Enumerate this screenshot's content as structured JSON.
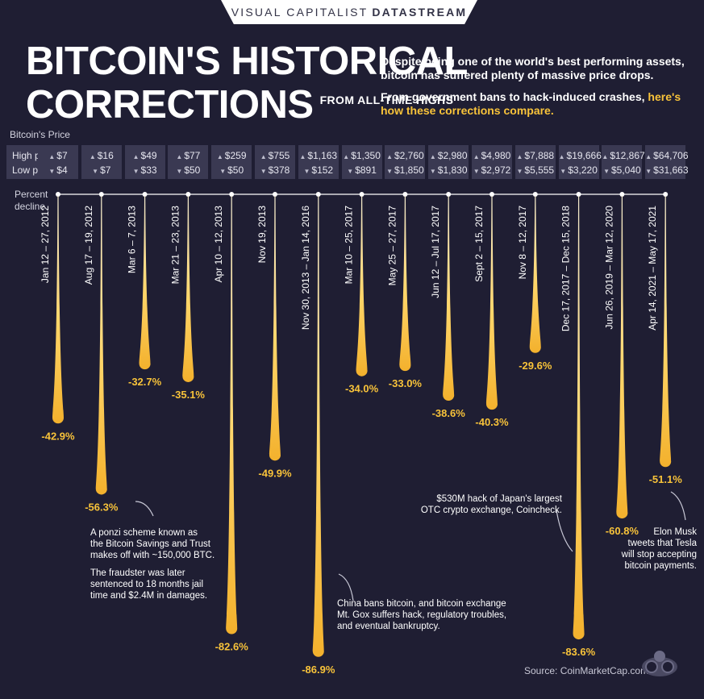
{
  "header": {
    "brand_light": "VISUAL CAPITALIST",
    "brand_bold": "DATASTREAM"
  },
  "title": {
    "line1": "BITCOIN'S HISTORICAL",
    "line2": "CORRECTIONS",
    "subtitle": "FROM ALL-TIME HIGHS"
  },
  "intro": {
    "p1": "Despite being one of the world's best performing assets, bitcoin has suffered plenty of massive price drops.",
    "p2_white": "From government bans to hack-induced crashes,",
    "p2_highlight": "here's how these corrections compare."
  },
  "labels": {
    "price_heading": "Bitcoin's Price",
    "high_price": "High price",
    "low_price": "Low price",
    "percent": "Percent",
    "decline": "decline"
  },
  "source": "Source: CoinMarketCap.com",
  "colors": {
    "accent": "#f8c33a",
    "background": "#1f1e33",
    "panel": "#3a3952"
  },
  "chart_data": {
    "type": "bar",
    "title": "Bitcoin's Historical Corrections from All-Time Highs",
    "ylabel": "Percent decline",
    "ylim": [
      0,
      -90
    ],
    "categories": [
      "Jan 12 – 27, 2012",
      "Aug 17 – 19, 2012",
      "Mar 6 – 7, 2013",
      "Mar 21 – 23, 2013",
      "Apr 10 – 12, 2013",
      "Nov 19, 2013",
      "Nov 30, 2013 – Jan 14, 2016",
      "Mar 10 – 25, 2017",
      "May 25 – 27, 2017",
      "Jun 12 – Jul 17, 2017",
      "Sept 2 – 15, 2017",
      "Nov 8 – 12, 2017",
      "Dec 17, 2017 – Dec 15, 2018",
      "Jun 26, 2019 – Mar 12, 2020",
      "Apr 14, 2021 – May 17, 2021"
    ],
    "values": [
      -42.9,
      -56.3,
      -32.7,
      -35.1,
      -82.6,
      -49.9,
      -86.9,
      -34.0,
      -33.0,
      -38.6,
      -40.3,
      -29.6,
      -83.6,
      -60.8,
      -51.1
    ],
    "value_labels": [
      "-42.9%",
      "-56.3%",
      "-32.7%",
      "-35.1%",
      "-82.6%",
      "-49.9%",
      "-86.9%",
      "-34.0%",
      "-33.0%",
      "-38.6%",
      "-40.3%",
      "-29.6%",
      "-83.6%",
      "-60.8%",
      "-51.1%"
    ],
    "high_prices": [
      "$7",
      "$16",
      "$49",
      "$77",
      "$259",
      "$755",
      "$1,163",
      "$1,350",
      "$2,760",
      "$2,980",
      "$4,980",
      "$7,888",
      "$19,666",
      "$12,867",
      "$64,706"
    ],
    "low_prices": [
      "$4",
      "$7",
      "$33",
      "$50",
      "$50",
      "$378",
      "$152",
      "$891",
      "$1,850",
      "$1,830",
      "$2,972",
      "$5,555",
      "$3,220",
      "$5,040",
      "$31,663"
    ],
    "annotations": [
      {
        "bar": 1,
        "lines": [
          "A ponzi scheme known as",
          "the Bitcoin Savings and Trust",
          "makes off with ~150,000 BTC."
        ]
      },
      {
        "bar": 1,
        "lines": [
          "The fraudster was later",
          "sentenced to 18 months jail",
          "time and $2.4M in damages."
        ]
      },
      {
        "bar": 6,
        "lines": [
          "China bans bitcoin, and bitcoin exchange",
          "Mt. Gox suffers hack, regulatory troubles,",
          "and eventual bankruptcy."
        ]
      },
      {
        "bar": 12,
        "lines": [
          "$530M hack of Japan's largest",
          "OTC crypto exchange, Coincheck."
        ]
      },
      {
        "bar": 14,
        "lines": [
          "Elon Musk",
          "tweets that Tesla",
          "will stop accepting",
          "bitcoin payments."
        ]
      }
    ]
  }
}
